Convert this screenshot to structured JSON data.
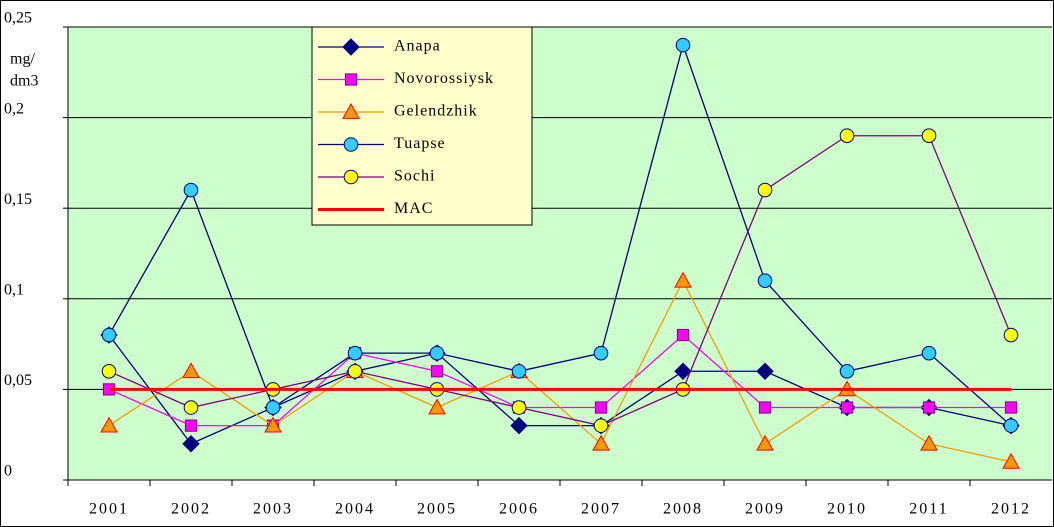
{
  "chart_data": {
    "type": "line",
    "ylabel": [
      "mg/",
      "dm3"
    ],
    "categories": [
      "2001",
      "2002",
      "2003",
      "2004",
      "2005",
      "2006",
      "2007",
      "2008",
      "2009",
      "2010",
      "2011",
      "2012"
    ],
    "ylim": [
      0,
      0.25
    ],
    "yticks": [
      0,
      {
        "value": 0.05,
        "label": "0,05"
      },
      {
        "value": 0.1,
        "label": "0,1"
      },
      {
        "value": 0.15,
        "label": "0,15"
      },
      {
        "value": 0.2,
        "label": "0,2"
      },
      {
        "value": 0.25,
        "label": "0,25"
      }
    ],
    "grid": true,
    "legend": "top-left",
    "series": [
      {
        "name": "Anapa",
        "color": "#000080",
        "marker": "diamond",
        "marker_fill": "#000080",
        "values": [
          0.08,
          0.02,
          0.04,
          0.06,
          0.07,
          0.03,
          0.03,
          0.06,
          0.06,
          0.04,
          0.04,
          0.03
        ]
      },
      {
        "name": "Novorossiysk",
        "color": "#ff00ff",
        "marker": "square",
        "marker_fill": "#ff00ff",
        "values": [
          0.05,
          0.03,
          0.03,
          0.07,
          0.06,
          0.04,
          0.04,
          0.08,
          0.04,
          0.04,
          0.04,
          0.04
        ]
      },
      {
        "name": "Gelendzhik",
        "color": "#ff9900",
        "marker": "triangle",
        "marker_fill": "#ff9900",
        "values": [
          0.03,
          0.06,
          0.03,
          0.06,
          0.04,
          0.06,
          0.02,
          0.11,
          0.02,
          0.05,
          0.02,
          0.01
        ]
      },
      {
        "name": "Tuapse",
        "color": "#000080",
        "marker": "circle",
        "marker_fill": "#33ccff",
        "values": [
          0.08,
          0.16,
          0.04,
          0.07,
          0.07,
          0.06,
          0.07,
          0.24,
          0.11,
          0.06,
          0.07,
          0.03
        ]
      },
      {
        "name": "Sochi",
        "color": "#800080",
        "marker": "circle",
        "marker_fill": "#ffff00",
        "values": [
          0.06,
          0.04,
          0.05,
          0.06,
          0.05,
          0.04,
          0.03,
          0.05,
          0.16,
          0.19,
          0.19,
          0.08
        ]
      },
      {
        "name": "MAC",
        "color": "#ff0000",
        "marker": "none",
        "values": [
          0.05,
          0.05,
          0.05,
          0.05,
          0.05,
          0.05,
          0.05,
          0.05,
          0.05,
          0.05,
          0.05,
          0.05
        ]
      }
    ]
  }
}
